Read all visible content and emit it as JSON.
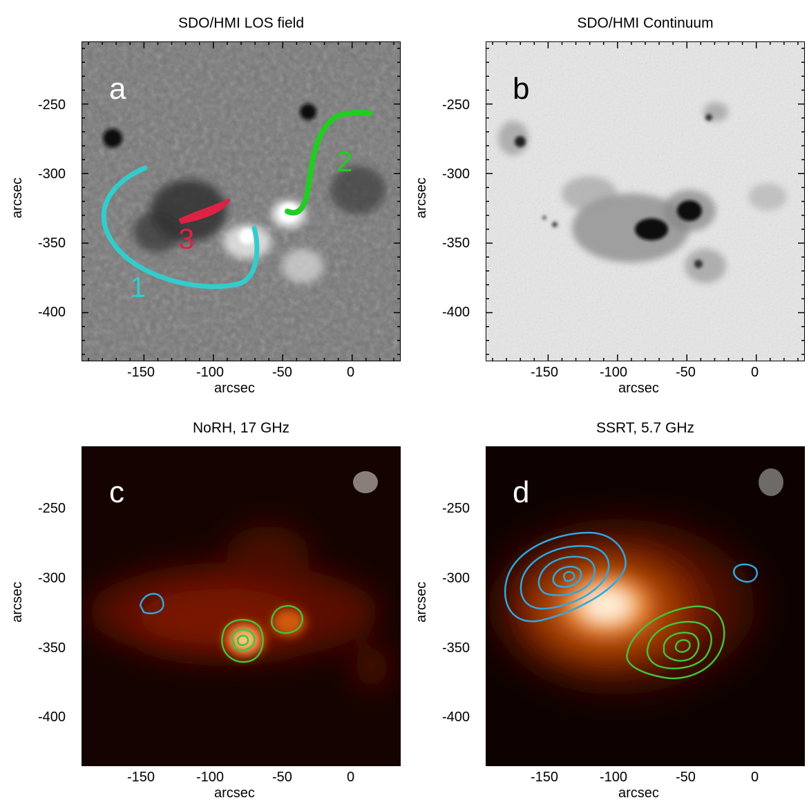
{
  "panels": {
    "a": {
      "title": "SDO/HMI LOS field",
      "letter": "a",
      "xlabel": "arcsec",
      "ylabel": "arcsec",
      "curve_labels": [
        "1",
        "2",
        "3"
      ]
    },
    "b": {
      "title": "SDO/HMI Continuum",
      "letter": "b",
      "xlabel": "arcsec",
      "ylabel": "arcsec"
    },
    "c": {
      "title": "NoRH, 17 GHz",
      "letter": "c",
      "xlabel": "arcsec",
      "ylabel": "arcsec"
    },
    "d": {
      "title": "SSRT, 5.7 GHz",
      "letter": "d",
      "xlabel": "arcsec",
      "ylabel": "arcsec"
    }
  },
  "axes": {
    "x_ticks": [
      "-150",
      "-100",
      "-50",
      "0"
    ],
    "y_ticks": [
      "-250",
      "-300",
      "-350",
      "-400"
    ],
    "x_range": [
      -195,
      35
    ],
    "y_range": [
      -435,
      -205
    ]
  },
  "colors": {
    "curve1": "#33cccc",
    "curve2": "#22cc22",
    "curve3": "#dd2244",
    "contour_blue": "#2fa8e0",
    "contour_green": "#44c23a"
  }
}
